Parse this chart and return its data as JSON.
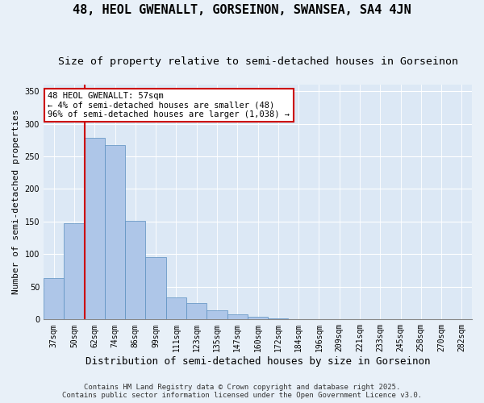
{
  "title1": "48, HEOL GWENALLT, GORSEINON, SWANSEA, SA4 4JN",
  "title2": "Size of property relative to semi-detached houses in Gorseinon",
  "xlabel": "Distribution of semi-detached houses by size in Gorseinon",
  "ylabel": "Number of semi-detached properties",
  "categories": [
    "37sqm",
    "50sqm",
    "62sqm",
    "74sqm",
    "86sqm",
    "99sqm",
    "111sqm",
    "123sqm",
    "135sqm",
    "147sqm",
    "160sqm",
    "172sqm",
    "184sqm",
    "196sqm",
    "209sqm",
    "221sqm",
    "233sqm",
    "245sqm",
    "258sqm",
    "270sqm",
    "282sqm"
  ],
  "values": [
    63,
    148,
    278,
    267,
    151,
    95,
    34,
    25,
    14,
    8,
    4,
    2,
    1,
    1,
    1,
    1,
    1,
    1,
    1,
    1,
    1
  ],
  "bar_color": "#aec6e8",
  "bar_edgecolor": "#5a8fc0",
  "vline_color": "#cc0000",
  "vline_pos": 1.5,
  "annotation_line1": "48 HEOL GWENALLT: 57sqm",
  "annotation_line2": "← 4% of semi-detached houses are smaller (48)",
  "annotation_line3": "96% of semi-detached houses are larger (1,038) →",
  "annotation_box_edgecolor": "#cc0000",
  "ylim": [
    0,
    360
  ],
  "yticks": [
    0,
    50,
    100,
    150,
    200,
    250,
    300,
    350
  ],
  "plot_bg_color": "#dce8f5",
  "fig_bg_color": "#e8f0f8",
  "footer1": "Contains HM Land Registry data © Crown copyright and database right 2025.",
  "footer2": "Contains public sector information licensed under the Open Government Licence v3.0.",
  "title1_fontsize": 11,
  "title2_fontsize": 9.5,
  "xlabel_fontsize": 9,
  "ylabel_fontsize": 8,
  "tick_fontsize": 7,
  "annot_fontsize": 7.5,
  "footer_fontsize": 6.5
}
